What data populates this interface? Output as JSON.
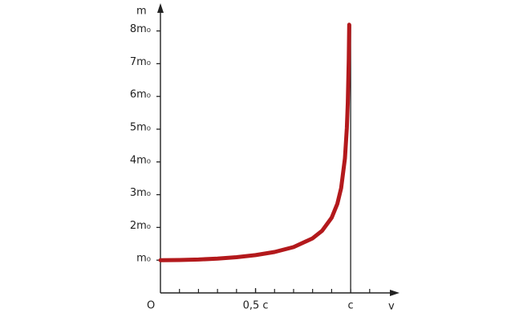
{
  "chart_data": {
    "type": "line",
    "x_label": "v",
    "y_label": "m",
    "origin_label": "O",
    "x": [
      0,
      0.1,
      0.2,
      0.3,
      0.4,
      0.5,
      0.6,
      0.7,
      0.8,
      0.85,
      0.9,
      0.93,
      0.95,
      0.97,
      0.98,
      0.985,
      0.99,
      0.9925
    ],
    "values": [
      1,
      1.005,
      1.02,
      1.048,
      1.091,
      1.155,
      1.25,
      1.4,
      1.667,
      1.898,
      2.294,
      2.72,
      3.2,
      4.11,
      5.03,
      5.8,
      7.09,
      8.19
    ],
    "color": "#b3191c",
    "xlim": [
      0,
      1.24
    ],
    "ylim": [
      0,
      8.7
    ],
    "xticks": [
      {
        "value": 0.5,
        "label": "0,5 c"
      },
      {
        "value": 1,
        "label": "c"
      }
    ],
    "x_minor_ticks": [
      0.1,
      0.2,
      0.3,
      0.4,
      0.5,
      0.6,
      0.7,
      0.8,
      0.9,
      1,
      1.1
    ],
    "yticks": [
      {
        "value": 1,
        "label": "m₀"
      },
      {
        "value": 2,
        "label": "2m₀"
      },
      {
        "value": 3,
        "label": "3m₀"
      },
      {
        "value": 4,
        "label": "4m₀"
      },
      {
        "value": 5,
        "label": "5m₀"
      },
      {
        "value": 6,
        "label": "6m₀"
      },
      {
        "value": 7,
        "label": "7m₀"
      },
      {
        "value": 8,
        "label": "8m₀"
      }
    ]
  }
}
